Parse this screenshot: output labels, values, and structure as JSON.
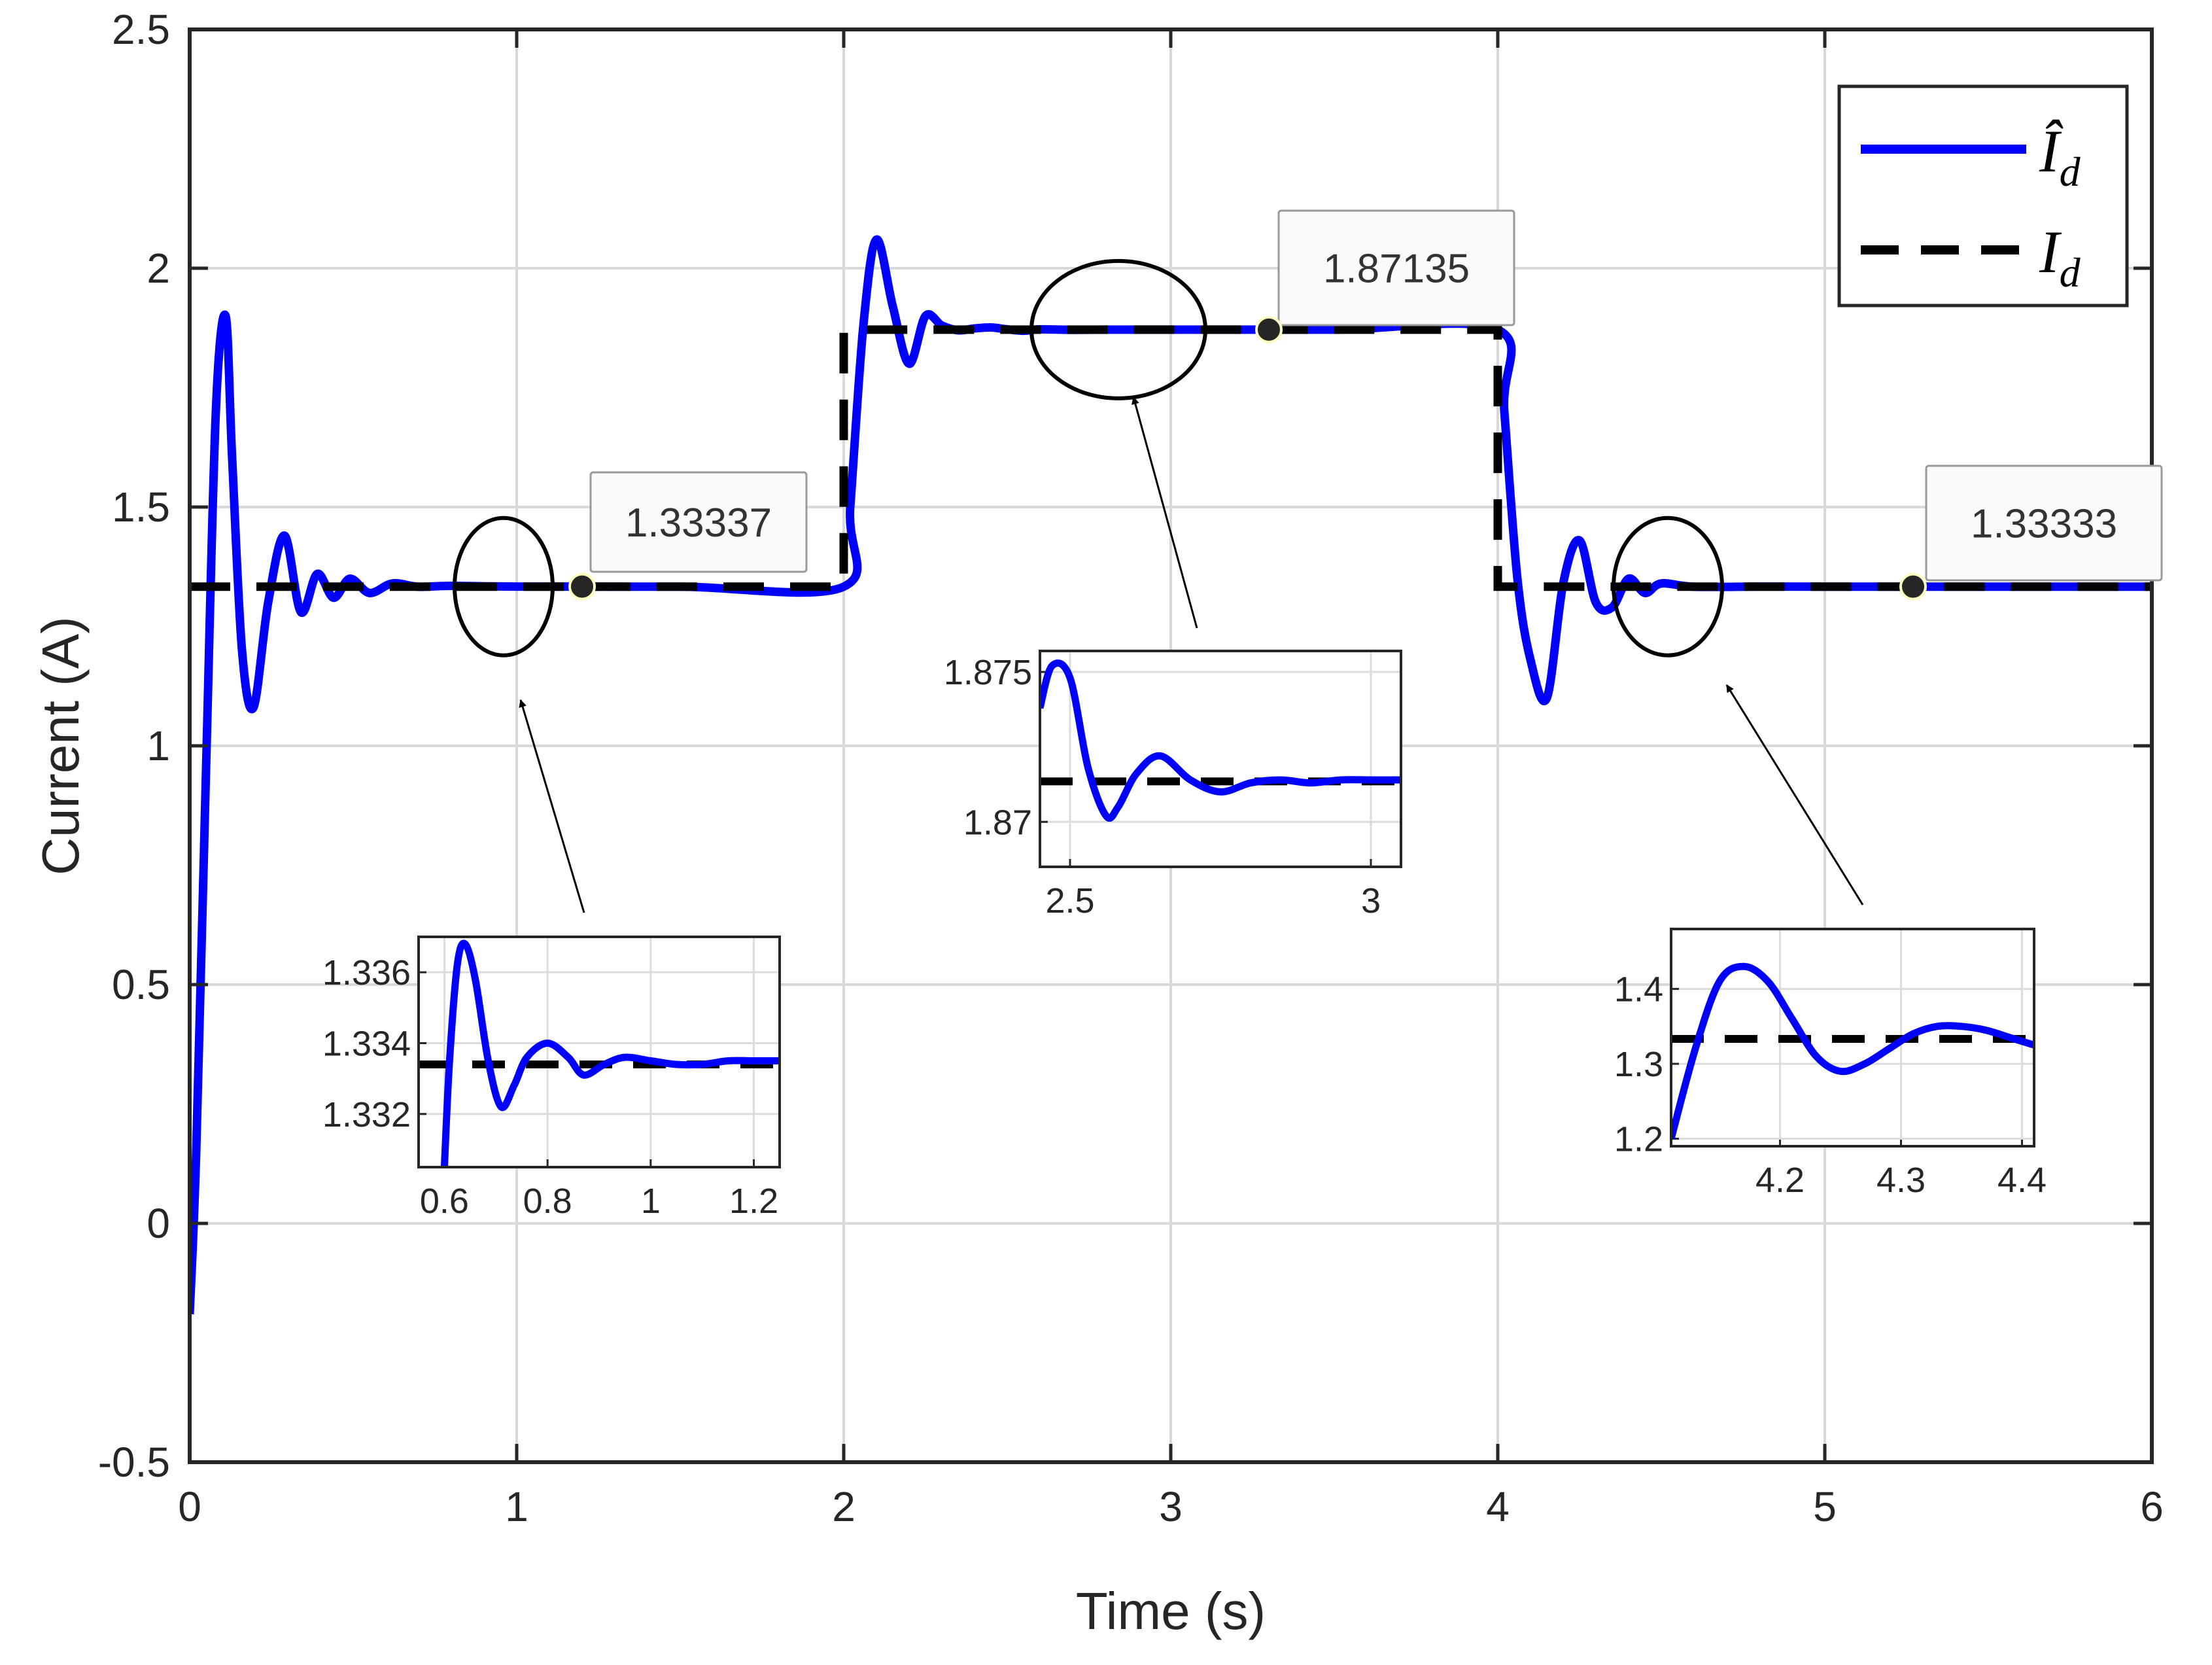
{
  "chart_data": {
    "type": "line",
    "xlabel": "Time (s)",
    "ylabel": "Current (A)",
    "xlim": [
      0,
      6
    ],
    "ylim": [
      -0.5,
      2.5
    ],
    "xticks": [
      "0",
      "1",
      "2",
      "3",
      "4",
      "5",
      "6"
    ],
    "yticks": [
      "-0.5",
      "0",
      "0.5",
      "1",
      "1.5",
      "2",
      "2.5"
    ],
    "grid": true,
    "legend_position": "top-right",
    "series": [
      {
        "name": "Î_d",
        "style": "solid",
        "color": "#0000ff",
        "x": [
          0,
          0.02,
          0.05,
          0.08,
          0.11,
          0.13,
          0.16,
          0.195,
          0.24,
          0.29,
          0.34,
          0.39,
          0.44,
          0.49,
          0.55,
          0.62,
          0.7,
          0.8,
          1.0,
          1.5,
          2.0,
          2.02,
          2.06,
          2.1,
          2.15,
          2.2,
          2.25,
          2.3,
          2.35,
          2.4,
          2.45,
          2.5,
          2.55,
          2.6,
          2.7,
          2.8,
          3.0,
          3.5,
          4.0,
          4.02,
          4.06,
          4.1,
          4.15,
          4.2,
          4.25,
          4.3,
          4.35,
          4.4,
          4.45,
          4.5,
          4.6,
          4.8,
          5.0,
          5.5,
          6.0
        ],
        "y": [
          -0.19,
          0.15,
          0.95,
          1.7,
          1.9,
          1.6,
          1.2,
          1.08,
          1.3,
          1.44,
          1.28,
          1.36,
          1.31,
          1.35,
          1.32,
          1.34,
          1.333,
          1.335,
          1.3334,
          1.3333,
          1.3333,
          1.5,
          1.88,
          2.06,
          1.92,
          1.8,
          1.9,
          1.88,
          1.87,
          1.874,
          1.876,
          1.872,
          1.869,
          1.872,
          1.871,
          1.8714,
          1.87135,
          1.87135,
          1.87135,
          1.7,
          1.35,
          1.18,
          1.1,
          1.34,
          1.43,
          1.3,
          1.29,
          1.35,
          1.32,
          1.34,
          1.333,
          1.3334,
          1.3333,
          1.33333,
          1.33333
        ]
      },
      {
        "name": "I_d",
        "style": "dashed",
        "color": "#000000",
        "x": [
          0,
          2,
          2,
          4,
          4,
          6
        ],
        "y": [
          1.3333,
          1.3333,
          1.87135,
          1.87135,
          1.3333,
          1.3333
        ]
      }
    ],
    "datatips": [
      {
        "x": 1.2,
        "y": 1.33337,
        "label": "1.33337"
      },
      {
        "x": 3.3,
        "y": 1.87135,
        "label": "1.87135"
      },
      {
        "x": 5.27,
        "y": 1.33333,
        "label": "1.33333"
      }
    ],
    "legend": {
      "entries": [
        {
          "main": "Î",
          "sub": "d"
        },
        {
          "main": "I",
          "sub": "d"
        }
      ]
    },
    "insets": [
      {
        "id": "inset-1",
        "xlim": [
          0.55,
          1.25
        ],
        "ylim": [
          1.3305,
          1.337
        ],
        "xticks": [
          "0.6",
          "0.8",
          "1",
          "1.2"
        ],
        "xtick_values": [
          0.6,
          0.8,
          1.0,
          1.2
        ],
        "yticks": [
          "1.336",
          "1.334",
          "1.332"
        ],
        "ytick_values": [
          1.336,
          1.334,
          1.332
        ],
        "blue_x": [
          0.6,
          0.61,
          0.625,
          0.64,
          0.66,
          0.685,
          0.71,
          0.735,
          0.76,
          0.8,
          0.84,
          0.87,
          0.91,
          0.95,
          1.0,
          1.05,
          1.1,
          1.15,
          1.2,
          1.25
        ],
        "blue_y": [
          1.3305,
          1.3335,
          1.3362,
          1.3368,
          1.3358,
          1.3335,
          1.3322,
          1.3328,
          1.3336,
          1.334,
          1.3336,
          1.3331,
          1.3334,
          1.3336,
          1.3335,
          1.3334,
          1.3334,
          1.3335,
          1.3335,
          1.3335
        ],
        "dash_y": 1.3334
      },
      {
        "id": "inset-2",
        "xlim": [
          2.45,
          3.05
        ],
        "ylim": [
          1.8685,
          1.8757
        ],
        "xticks": [
          "2.5",
          "3"
        ],
        "xtick_values": [
          2.5,
          3.0
        ],
        "yticks": [
          "1.875",
          "1.87"
        ],
        "ytick_values": [
          1.875,
          1.87
        ],
        "blue_x": [
          2.45,
          2.47,
          2.5,
          2.53,
          2.56,
          2.58,
          2.61,
          2.65,
          2.7,
          2.75,
          2.8,
          2.85,
          2.9,
          2.95,
          3.0,
          3.05
        ],
        "blue_y": [
          1.8738,
          1.8752,
          1.8748,
          1.8718,
          1.8702,
          1.8705,
          1.8716,
          1.8722,
          1.8714,
          1.871,
          1.8713,
          1.8714,
          1.8713,
          1.8714,
          1.8714,
          1.8714
        ],
        "dash_y": 1.87135
      },
      {
        "id": "inset-3",
        "xlim": [
          4.11,
          4.41
        ],
        "ylim": [
          1.19,
          1.48
        ],
        "xticks": [
          "4.2",
          "4.3",
          "4.4"
        ],
        "xtick_values": [
          4.2,
          4.3,
          4.4
        ],
        "yticks": [
          "1.4",
          "1.3",
          "1.2"
        ],
        "ytick_values": [
          1.4,
          1.3,
          1.2
        ],
        "blue_x": [
          4.11,
          4.13,
          4.15,
          4.17,
          4.19,
          4.21,
          4.23,
          4.25,
          4.27,
          4.29,
          4.31,
          4.33,
          4.35,
          4.37,
          4.39,
          4.41
        ],
        "blue_y": [
          1.2,
          1.32,
          1.41,
          1.43,
          1.41,
          1.36,
          1.31,
          1.29,
          1.3,
          1.32,
          1.34,
          1.35,
          1.35,
          1.345,
          1.335,
          1.325
        ],
        "dash_y": 1.3333
      }
    ]
  }
}
